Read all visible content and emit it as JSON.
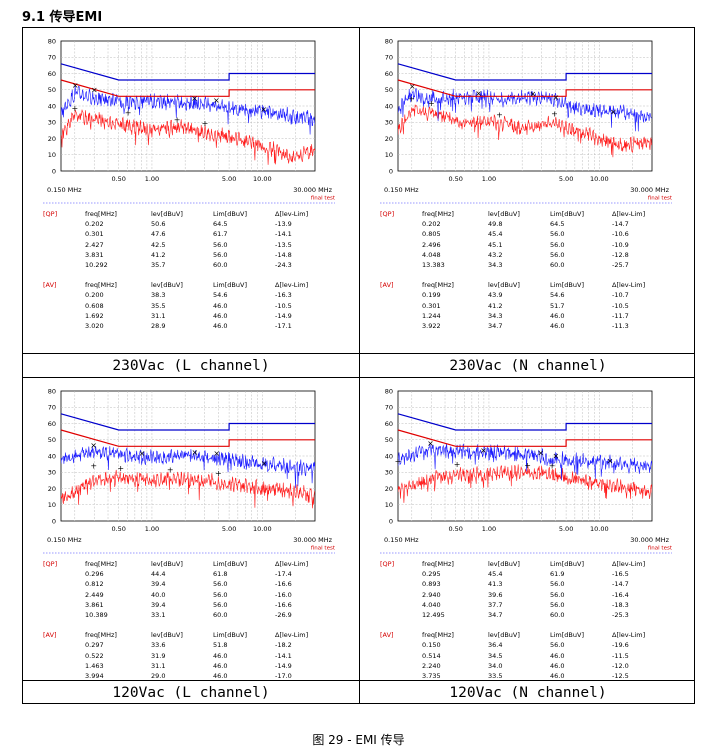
{
  "section_title": "9.1 传导EMI",
  "figure_caption": "图 29 - EMI 传导",
  "axis": {
    "ylim": [
      0,
      80
    ],
    "yticks": [
      "80",
      "70",
      "60",
      "50",
      "40",
      "30",
      "20",
      "10",
      "0"
    ],
    "x_scale": "log",
    "xlim": [
      0.15,
      30
    ],
    "xticks": [
      "0.50",
      "1.00",
      "5.00",
      "10.00"
    ],
    "x_start_label": "0.150 MHz",
    "x_end_label": "30.000 MHz",
    "final_test_label": "final test"
  },
  "colors": {
    "qp": "#1a1aff",
    "av": "#ff1a1a",
    "limit_qp": "#0000cc",
    "limit_av": "#e00000",
    "grid": "#bbbbbb",
    "tag": "#d40000",
    "dotted": "#7777ff"
  },
  "headers": {
    "freq": "freq[MHz]",
    "lev": "lev[dBuV]",
    "lim": "Lim[dBuV]",
    "delta": "Δ[lev-Lim]",
    "qp_tag": "[QP]",
    "av_tag": "[AV]"
  },
  "panels": [
    {
      "caption": "230Vac (L channel)",
      "qp": [
        [
          "0.202",
          "50.6",
          "64.5",
          "-13.9"
        ],
        [
          "0.301",
          "47.6",
          "61.7",
          "-14.1"
        ],
        [
          "2.427",
          "42.5",
          "56.0",
          "-13.5"
        ],
        [
          "3.831",
          "41.2",
          "56.0",
          "-14.8"
        ],
        [
          "10.292",
          "35.7",
          "60.0",
          "-24.3"
        ]
      ],
      "av": [
        [
          "0.200",
          "38.3",
          "54.6",
          "-16.3"
        ],
        [
          "0.608",
          "35.5",
          "46.0",
          "-10.5"
        ],
        [
          "1.692",
          "31.1",
          "46.0",
          "-14.9"
        ],
        [
          "3.020",
          "28.9",
          "46.0",
          "-17.1"
        ]
      ]
    },
    {
      "caption": "230Vac (N channel)",
      "qp": [
        [
          "0.202",
          "49.8",
          "64.5",
          "-14.7"
        ],
        [
          "0.805",
          "45.4",
          "56.0",
          "-10.6"
        ],
        [
          "2.496",
          "45.1",
          "56.0",
          "-10.9"
        ],
        [
          "4.048",
          "43.2",
          "56.0",
          "-12.8"
        ],
        [
          "13.383",
          "34.3",
          "60.0",
          "-25.7"
        ]
      ],
      "av": [
        [
          "0.199",
          "43.9",
          "54.6",
          "-10.7"
        ],
        [
          "0.301",
          "41.2",
          "51.7",
          "-10.5"
        ],
        [
          "1.244",
          "34.3",
          "46.0",
          "-11.7"
        ],
        [
          "3.922",
          "34.7",
          "46.0",
          "-11.3"
        ]
      ]
    },
    {
      "caption": "120Vac (L channel)",
      "qp": [
        [
          "0.296",
          "44.4",
          "61.8",
          "-17.4"
        ],
        [
          "0.812",
          "39.4",
          "56.0",
          "-16.6"
        ],
        [
          "2.449",
          "40.0",
          "56.0",
          "-16.0"
        ],
        [
          "3.861",
          "39.4",
          "56.0",
          "-16.6"
        ],
        [
          "10.389",
          "33.1",
          "60.0",
          "-26.9"
        ]
      ],
      "av": [
        [
          "0.297",
          "33.6",
          "51.8",
          "-18.2"
        ],
        [
          "0.522",
          "31.9",
          "46.0",
          "-14.1"
        ],
        [
          "1.463",
          "31.1",
          "46.0",
          "-14.9"
        ],
        [
          "3.994",
          "29.0",
          "46.0",
          "-17.0"
        ]
      ]
    },
    {
      "caption": "120Vac (N channel)",
      "qp": [
        [
          "0.295",
          "45.4",
          "61.9",
          "-16.5"
        ],
        [
          "0.893",
          "41.3",
          "56.0",
          "-14.7"
        ],
        [
          "2.940",
          "39.6",
          "56.0",
          "-16.4"
        ],
        [
          "4.040",
          "37.7",
          "56.0",
          "-18.3"
        ],
        [
          "12.495",
          "34.7",
          "60.0",
          "-25.3"
        ]
      ],
      "av": [
        [
          "0.150",
          "36.4",
          "56.0",
          "-19.6"
        ],
        [
          "0.514",
          "34.5",
          "46.0",
          "-11.5"
        ],
        [
          "2.240",
          "34.0",
          "46.0",
          "-12.0"
        ],
        [
          "3.735",
          "33.5",
          "46.0",
          "-12.5"
        ]
      ]
    }
  ],
  "chart_data": [
    {
      "type": "line",
      "caption": "230Vac (L channel)",
      "x_scale": "log",
      "xlim": [
        0.15,
        30
      ],
      "ylim": [
        0,
        80
      ],
      "series": [
        {
          "values": [
            [
              0.15,
              66
            ],
            [
              0.5,
              56
            ],
            [
              5,
              56
            ],
            [
              5,
              60
            ],
            [
              30,
              60
            ]
          ]
        },
        {
          "values": [
            [
              0.15,
              56
            ],
            [
              0.5,
              46
            ],
            [
              5,
              46
            ],
            [
              5,
              50
            ],
            [
              30,
              50
            ]
          ]
        }
      ],
      "markers_qp": [
        [
          0.202,
          50.6
        ],
        [
          0.301,
          47.6
        ],
        [
          2.427,
          42.5
        ],
        [
          3.831,
          41.2
        ],
        [
          10.292,
          35.7
        ]
      ],
      "markers_av": [
        [
          0.2,
          38.3
        ],
        [
          0.608,
          35.5
        ],
        [
          1.692,
          31.1
        ],
        [
          3.02,
          28.9
        ]
      ]
    },
    {
      "type": "line",
      "caption": "230Vac (N channel)",
      "x_scale": "log",
      "xlim": [
        0.15,
        30
      ],
      "ylim": [
        0,
        80
      ],
      "series": [
        {
          "values": [
            [
              0.15,
              66
            ],
            [
              0.5,
              56
            ],
            [
              5,
              56
            ],
            [
              5,
              60
            ],
            [
              30,
              60
            ]
          ]
        },
        {
          "values": [
            [
              0.15,
              56
            ],
            [
              0.5,
              46
            ],
            [
              5,
              46
            ],
            [
              5,
              50
            ],
            [
              30,
              50
            ]
          ]
        }
      ],
      "markers_qp": [
        [
          0.202,
          49.8
        ],
        [
          0.805,
          45.4
        ],
        [
          2.496,
          45.1
        ],
        [
          4.048,
          43.2
        ],
        [
          13.383,
          34.3
        ]
      ],
      "markers_av": [
        [
          0.199,
          43.9
        ],
        [
          0.301,
          41.2
        ],
        [
          1.244,
          34.3
        ],
        [
          3.922,
          34.7
        ]
      ]
    },
    {
      "type": "line",
      "caption": "120Vac (L channel)",
      "x_scale": "log",
      "xlim": [
        0.15,
        30
      ],
      "ylim": [
        0,
        80
      ],
      "series": [
        {
          "values": [
            [
              0.15,
              66
            ],
            [
              0.5,
              56
            ],
            [
              5,
              56
            ],
            [
              5,
              60
            ],
            [
              30,
              60
            ]
          ]
        },
        {
          "values": [
            [
              0.15,
              56
            ],
            [
              0.5,
              46
            ],
            [
              5,
              46
            ],
            [
              5,
              50
            ],
            [
              30,
              50
            ]
          ]
        }
      ],
      "markers_qp": [
        [
          0.296,
          44.4
        ],
        [
          0.812,
          39.4
        ],
        [
          2.449,
          40.0
        ],
        [
          3.861,
          39.4
        ],
        [
          10.389,
          33.1
        ]
      ],
      "markers_av": [
        [
          0.297,
          33.6
        ],
        [
          0.522,
          31.9
        ],
        [
          1.463,
          31.1
        ],
        [
          3.994,
          29.0
        ]
      ]
    },
    {
      "type": "line",
      "caption": "120Vac (N channel)",
      "x_scale": "log",
      "xlim": [
        0.15,
        30
      ],
      "ylim": [
        0,
        80
      ],
      "series": [
        {
          "values": [
            [
              0.15,
              66
            ],
            [
              0.5,
              56
            ],
            [
              5,
              56
            ],
            [
              5,
              60
            ],
            [
              30,
              60
            ]
          ]
        },
        {
          "values": [
            [
              0.15,
              56
            ],
            [
              0.5,
              46
            ],
            [
              5,
              46
            ],
            [
              5,
              50
            ],
            [
              30,
              50
            ]
          ]
        }
      ],
      "markers_qp": [
        [
          0.295,
          45.4
        ],
        [
          0.893,
          41.3
        ],
        [
          2.94,
          39.6
        ],
        [
          4.04,
          37.7
        ],
        [
          12.495,
          34.7
        ]
      ],
      "markers_av": [
        [
          0.15,
          36.4
        ],
        [
          0.514,
          34.5
        ],
        [
          2.24,
          34.0
        ],
        [
          3.735,
          33.5
        ]
      ]
    }
  ]
}
